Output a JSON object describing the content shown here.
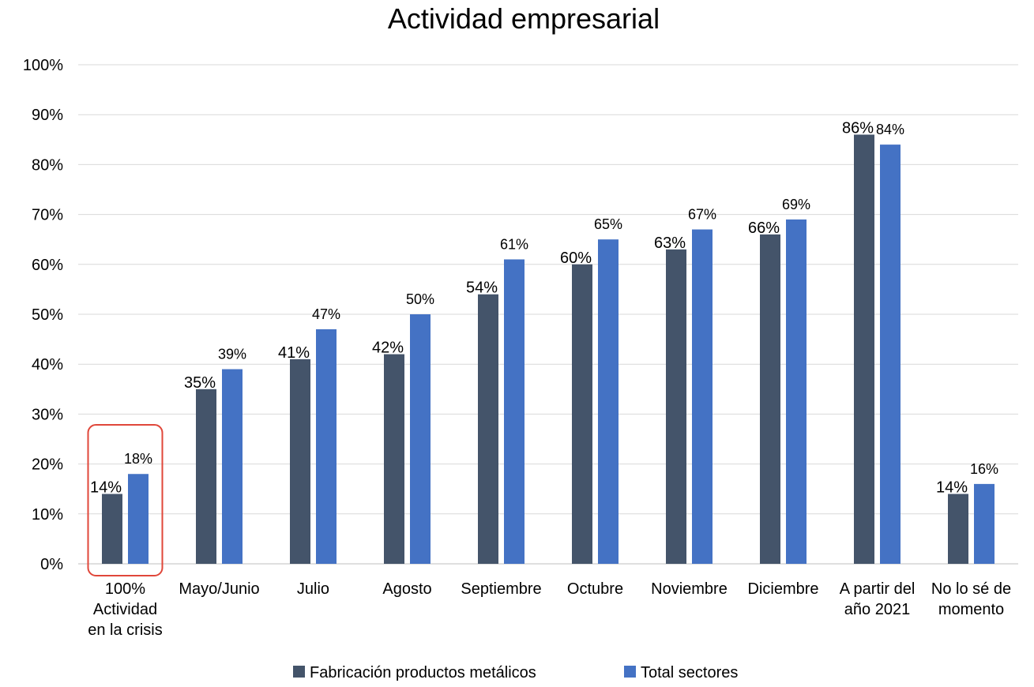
{
  "chart_data": {
    "type": "bar",
    "title": "Actividad empresarial",
    "categories": [
      "100% Actividad en la crisis",
      "Mayo/Junio",
      "Julio",
      "Agosto",
      "Septiembre",
      "Octubre",
      "Noviembre",
      "Diciembre",
      "A partir del año 2021",
      "No lo sé de momento"
    ],
    "category_lines": [
      [
        "100%",
        "Actividad",
        "en la crisis"
      ],
      [
        "Mayo/Junio"
      ],
      [
        "Julio"
      ],
      [
        "Agosto"
      ],
      [
        "Septiembre"
      ],
      [
        "Octubre"
      ],
      [
        "Noviembre"
      ],
      [
        "Diciembre"
      ],
      [
        "A partir del",
        "año 2021"
      ],
      [
        "No lo sé de",
        "momento"
      ]
    ],
    "series": [
      {
        "name": "Fabricación productos metálicos",
        "color": "#44546A",
        "values": [
          14,
          35,
          41,
          42,
          54,
          60,
          63,
          66,
          86,
          14
        ],
        "labels": [
          "14%",
          "35%",
          "41%",
          "42%",
          "54%",
          "60%",
          "63%",
          "66%",
          "86%",
          "14%"
        ]
      },
      {
        "name": "Total sectores",
        "color": "#4472C4",
        "values": [
          18,
          39,
          47,
          50,
          61,
          65,
          67,
          69,
          84,
          16
        ],
        "labels": [
          "18%",
          "39%",
          "47%",
          "50%",
          "61%",
          "65%",
          "67%",
          "69%",
          "84%",
          "16%"
        ]
      }
    ],
    "ylim": [
      0,
      100
    ],
    "yticks": [
      "0%",
      "10%",
      "20%",
      "30%",
      "40%",
      "50%",
      "60%",
      "70%",
      "80%",
      "90%",
      "100%"
    ],
    "grid": true,
    "legend_position": "bottom",
    "highlight": {
      "category_index": 0,
      "color": "#E0473A"
    }
  }
}
